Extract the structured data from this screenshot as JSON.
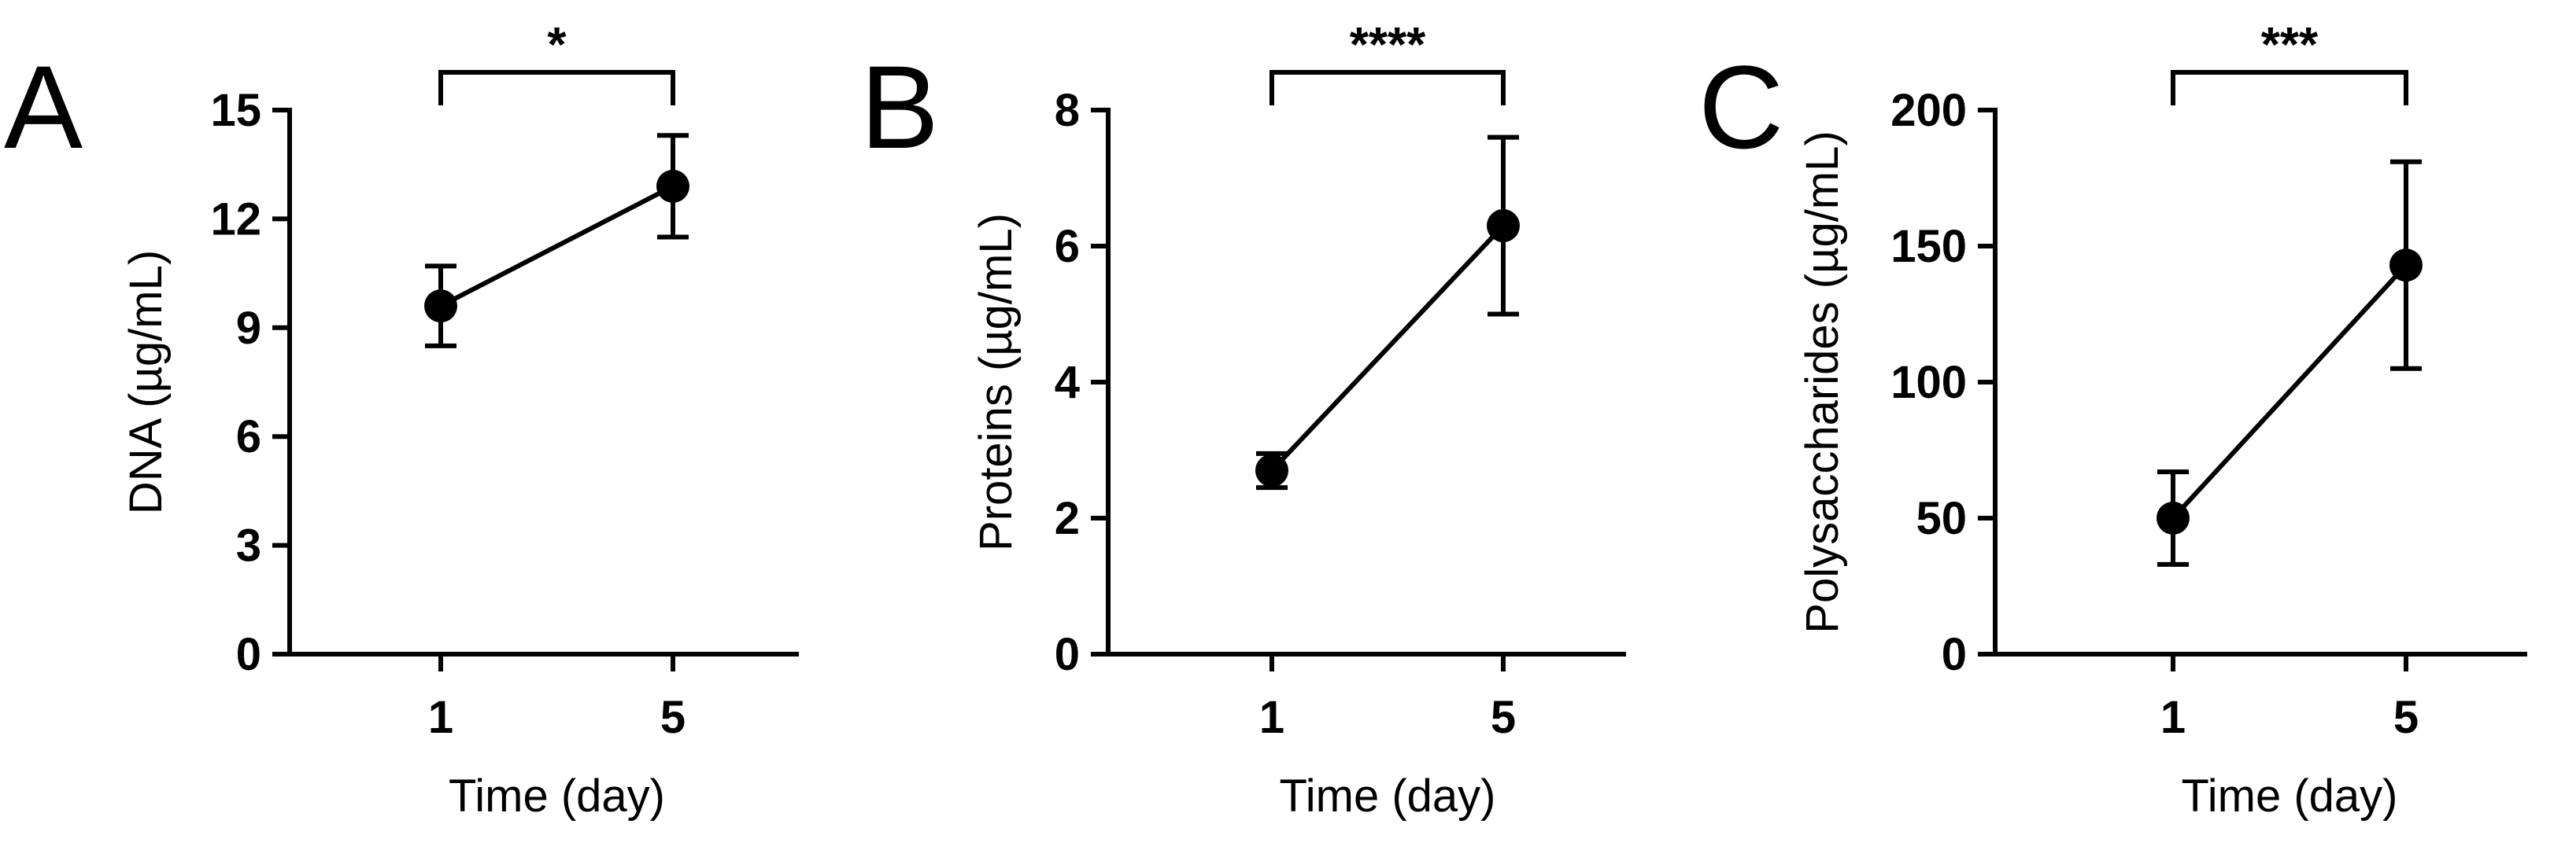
{
  "colors": {
    "ink": "#000000",
    "background": "#ffffff"
  },
  "chart_data": [
    {
      "panel": "A",
      "type": "line",
      "x": [
        1,
        5
      ],
      "xlabel": "Time (day)",
      "ylabel": "DNA (µg/mL)",
      "ylim": [
        0,
        15
      ],
      "yticks": [
        0,
        3,
        6,
        9,
        12,
        15
      ],
      "xticks": [
        1,
        5
      ],
      "series": [
        {
          "values": [
            9.6,
            12.9
          ],
          "error": [
            1.1,
            1.4
          ]
        }
      ],
      "significance": "*",
      "grid": false
    },
    {
      "panel": "B",
      "type": "line",
      "x": [
        1,
        5
      ],
      "xlabel": "Time (day)",
      "ylabel": "Proteins (µg/mL)",
      "ylim": [
        0,
        8
      ],
      "yticks": [
        0,
        2,
        4,
        6,
        8
      ],
      "xticks": [
        1,
        5
      ],
      "series": [
        {
          "values": [
            2.7,
            6.3
          ],
          "error": [
            0.25,
            1.3
          ]
        }
      ],
      "significance": "****",
      "grid": false
    },
    {
      "panel": "C",
      "type": "line",
      "x": [
        1,
        5
      ],
      "xlabel": "Time (day)",
      "ylabel": "Polysaccharides (µg/mL)",
      "ylim": [
        0,
        200
      ],
      "yticks": [
        0,
        50,
        100,
        150,
        200
      ],
      "xticks": [
        1,
        5
      ],
      "series": [
        {
          "values": [
            50,
            143
          ],
          "error": [
            17,
            38
          ]
        }
      ],
      "significance": "***",
      "grid": false
    }
  ]
}
